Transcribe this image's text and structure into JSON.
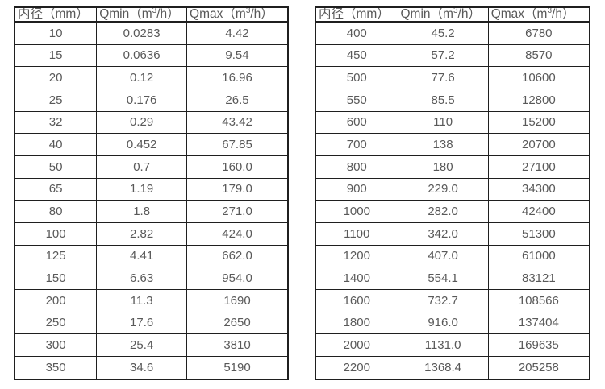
{
  "colors": {
    "background": "#ffffff",
    "text": "#595959",
    "border": "#1f1f1f"
  },
  "tables": [
    {
      "name": "flow-rate-table-small-diameters",
      "columns": [
        "内径（mm）",
        "Qmin（m³/h）",
        "Qmax（m³/h）"
      ],
      "rows": [
        [
          "10",
          "0.0283",
          "4.42"
        ],
        [
          "15",
          "0.0636",
          "9.54"
        ],
        [
          "20",
          "0.12",
          "16.96"
        ],
        [
          "25",
          "0.176",
          "26.5"
        ],
        [
          "32",
          "0.29",
          "43.42"
        ],
        [
          "40",
          "0.452",
          "67.85"
        ],
        [
          "50",
          "0.7",
          "160.0"
        ],
        [
          "65",
          "1.19",
          "179.0"
        ],
        [
          "80",
          "1.8",
          "271.0"
        ],
        [
          "100",
          "2.82",
          "424.0"
        ],
        [
          "125",
          "4.41",
          "662.0"
        ],
        [
          "150",
          "6.63",
          "954.0"
        ],
        [
          "200",
          "11.3",
          "1690"
        ],
        [
          "250",
          "17.6",
          "2650"
        ],
        [
          "300",
          "25.4",
          "3810"
        ],
        [
          "350",
          "34.6",
          "5190"
        ]
      ]
    },
    {
      "name": "flow-rate-table-large-diameters",
      "columns": [
        "内径（mm）",
        "Qmin（m³/h）",
        "Qmax（m³/h）"
      ],
      "rows": [
        [
          "400",
          "45.2",
          "6780"
        ],
        [
          "450",
          "57.2",
          "8570"
        ],
        [
          "500",
          "77.6",
          "10600"
        ],
        [
          "550",
          "85.5",
          "12800"
        ],
        [
          "600",
          "110",
          "15200"
        ],
        [
          "700",
          "138",
          "20700"
        ],
        [
          "800",
          "180",
          "27100"
        ],
        [
          "900",
          "229.0",
          "34300"
        ],
        [
          "1000",
          "282.0",
          "42400"
        ],
        [
          "1100",
          "342.0",
          "51300"
        ],
        [
          "1200",
          "407.0",
          "61000"
        ],
        [
          "1400",
          "554.1",
          "83121"
        ],
        [
          "1600",
          "732.7",
          "108566"
        ],
        [
          "1800",
          "916.0",
          "137404"
        ],
        [
          "2000",
          "1131.0",
          "169635"
        ],
        [
          "2200",
          "1368.4",
          "205258"
        ]
      ]
    }
  ]
}
